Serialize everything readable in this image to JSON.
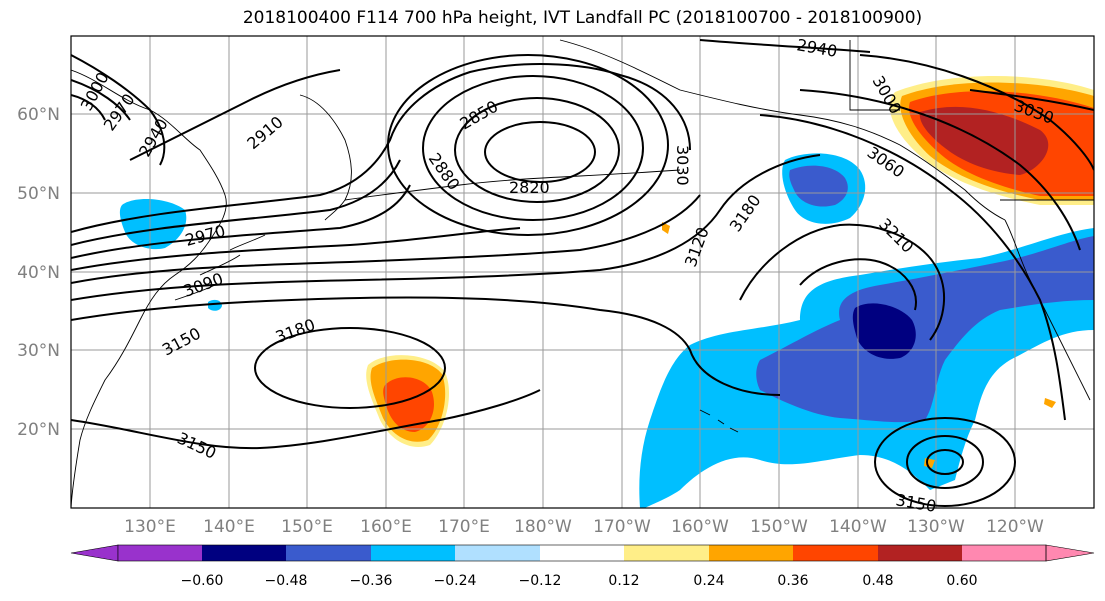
{
  "title": "2018100400 F114 700 hPa height, IVT Landfall PC (2018100700 - 2018100900)",
  "lat_labels": [
    "60°N",
    "50°N",
    "40°N",
    "30°N",
    "20°N"
  ],
  "lon_labels": [
    "130°E",
    "140°E",
    "150°E",
    "160°E",
    "170°E",
    "180°W",
    "170°W",
    "160°W",
    "150°W",
    "140°W",
    "130°W",
    "120°W"
  ],
  "contour_labels": [
    "3000",
    "2970",
    "2940",
    "2910",
    "2850",
    "2880",
    "2820",
    "3030",
    "2940",
    "3000",
    "3030",
    "3060",
    "3120",
    "3180",
    "3210",
    "2970",
    "3090",
    "3150",
    "3180",
    "3150",
    "3150"
  ],
  "colorbar": {
    "tick_labels": [
      "−0.60",
      "−0.48",
      "−0.36",
      "−0.24",
      "−0.12",
      "0.12",
      "0.24",
      "0.36",
      "0.48",
      "0.60"
    ],
    "colors": [
      "#9932CC",
      "#000080",
      "#3A5BCD",
      "#00BFFF",
      "#B0E0FF",
      "#FFFFFF",
      "#FFEE88",
      "#FFA500",
      "#FF4500",
      "#B22222",
      "#FF88B0"
    ]
  },
  "colors": {
    "neg_strong": "#000080",
    "neg_mid": "#3A5BCD",
    "neg_weak": "#00BFFF",
    "pos_weak": "#FFEE88",
    "pos_mid": "#FFA500",
    "pos_strong": "#FF4500",
    "pos_max": "#B22222"
  }
}
